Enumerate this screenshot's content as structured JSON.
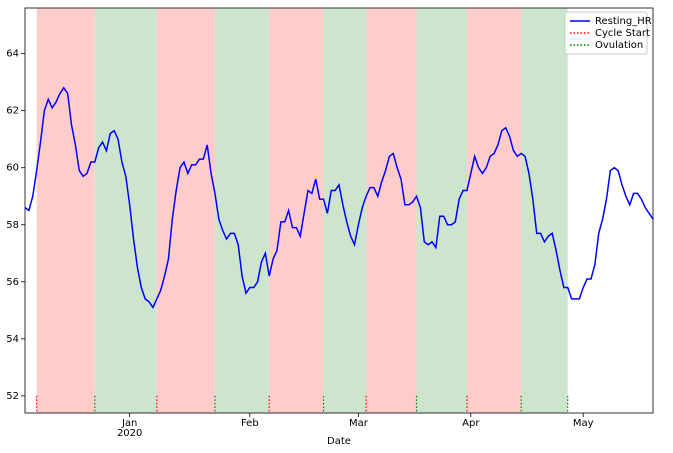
{
  "chart_data": {
    "type": "line",
    "xlabel": "Date",
    "xlim": [
      0,
      162
    ],
    "ylim": [
      51.4,
      65.6
    ],
    "xticks": [
      {
        "value": 27,
        "label": "Jan\n2020"
      },
      {
        "value": 58,
        "label": "Feb"
      },
      {
        "value": 86,
        "label": "Mar"
      },
      {
        "value": 115,
        "label": "Apr"
      },
      {
        "value": 144,
        "label": "May"
      }
    ],
    "yticks": [
      52,
      54,
      56,
      58,
      60,
      62,
      64
    ],
    "legend": "upper right",
    "series": [
      {
        "name": "Resting_HR",
        "color": "#0000ff",
        "values": [
          58.6,
          58.5,
          59.0,
          59.9,
          60.9,
          62.0,
          62.4,
          62.1,
          62.3,
          62.6,
          62.8,
          62.6,
          61.5,
          60.8,
          59.9,
          59.7,
          59.8,
          60.2,
          60.2,
          60.7,
          60.9,
          60.6,
          61.2,
          61.3,
          61.0,
          60.2,
          59.7,
          58.7,
          57.5,
          56.5,
          55.8,
          55.4,
          55.3,
          55.1,
          55.4,
          55.7,
          56.2,
          56.8,
          58.2,
          59.2,
          60.0,
          60.2,
          59.8,
          60.1,
          60.1,
          60.3,
          60.3,
          60.8,
          59.8,
          59.1,
          58.2,
          57.8,
          57.5,
          57.7,
          57.7,
          57.3,
          56.2,
          55.6,
          55.8,
          55.8,
          56.0,
          56.7,
          57.0,
          56.2,
          56.8,
          57.1,
          58.1,
          58.1,
          58.5,
          57.9,
          57.9,
          57.6,
          58.4,
          59.2,
          59.1,
          59.6,
          58.9,
          58.9,
          58.4,
          59.2,
          59.2,
          59.4,
          58.7,
          58.1,
          57.6,
          57.3,
          58.0,
          58.6,
          59.0,
          59.3,
          59.3,
          59.0,
          59.5,
          59.9,
          60.4,
          60.5,
          60.0,
          59.6,
          58.7,
          58.7,
          58.8,
          59.0,
          58.6,
          57.4,
          57.3,
          57.4,
          57.2,
          58.3,
          58.3,
          58.0,
          58.0,
          58.1,
          58.9,
          59.2,
          59.2,
          59.8,
          60.4,
          60.0,
          59.8,
          60.0,
          60.4,
          60.5,
          60.8,
          61.3,
          61.4,
          61.1,
          60.6,
          60.4,
          60.5,
          60.4,
          59.8,
          58.9,
          57.7,
          57.7,
          57.4,
          57.6,
          57.7,
          57.1,
          56.4,
          55.8,
          55.8,
          55.4,
          55.4,
          55.4,
          55.8,
          56.1,
          56.1,
          56.6,
          57.7,
          58.2,
          58.9,
          59.9,
          60.0,
          59.9,
          59.4,
          59.0,
          58.7,
          59.1,
          59.1,
          58.9,
          58.6,
          58.4,
          58.2
        ]
      }
    ],
    "vlines": [
      {
        "name": "Cycle Start",
        "color": "#ff0000",
        "span_color": "#ffcccc",
        "x": [
          3,
          34,
          63,
          88,
          114
        ]
      },
      {
        "name": "Ovulation",
        "color": "#008000",
        "span_color": "#cce5cc",
        "x": [
          18,
          49,
          77,
          101,
          128,
          140
        ]
      }
    ]
  }
}
